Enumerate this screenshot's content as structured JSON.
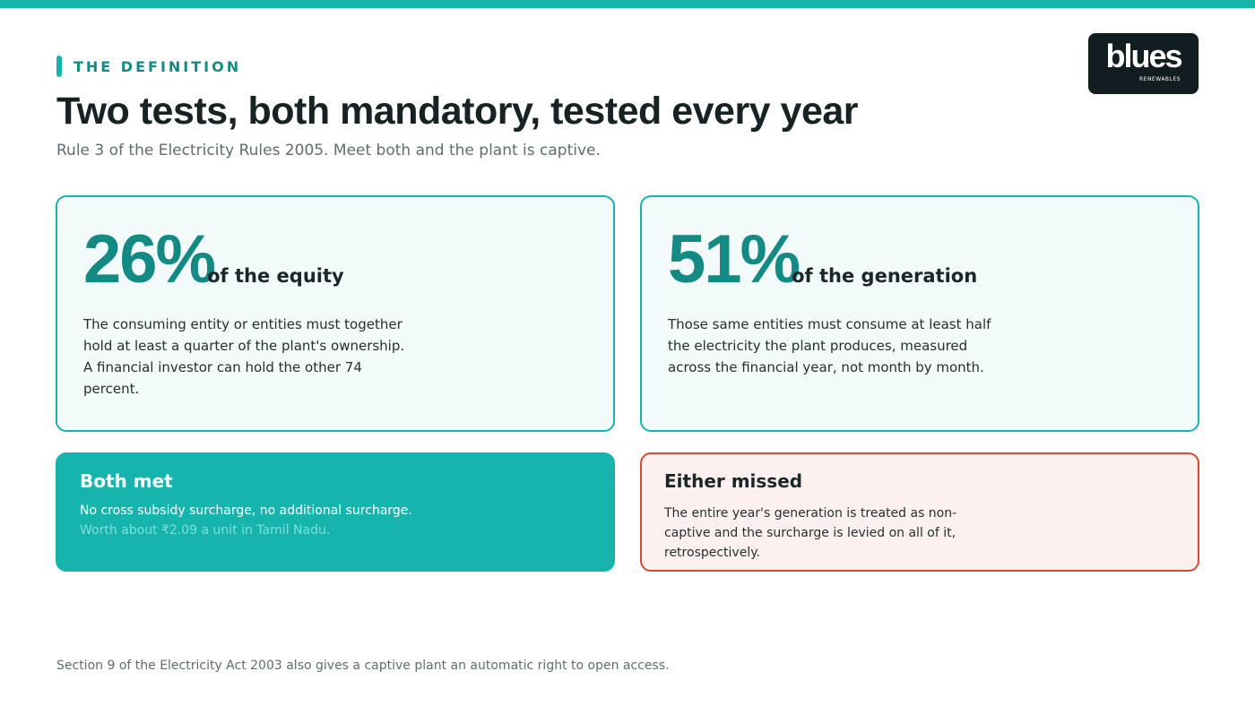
{
  "header": {
    "eyebrow": "THE DEFINITION",
    "title": "Two tests, both mandatory, tested every year",
    "subtitle": "Rule 3 of the Electricity Rules 2005. Meet both and the plant is captive."
  },
  "logo": {
    "word": "blues",
    "sub": "RENEWABLES"
  },
  "tests": [
    {
      "figure": "26%",
      "label": "of the equity",
      "body": "The consuming entity or entities must together hold at least a quarter of the plant's ownership. A financial investor can hold the other 74 percent."
    },
    {
      "figure": "51%",
      "label": "of the generation",
      "body": "Those same entities must consume at least half the electricity the plant produces, measured across the financial year, not month by month."
    }
  ],
  "outcomes": {
    "met": {
      "title": "Both met",
      "line1": "No cross subsidy surcharge, no additional surcharge.",
      "line2": "Worth about ₹2.09 a unit in Tamil Nadu."
    },
    "missed": {
      "title": "Either missed",
      "body": "The entire year's generation is treated as non-captive and the surcharge is levied on all of it, retrospectively."
    }
  },
  "footnote": "Section 9 of the Electricity Act 2003 also gives a captive plant an automatic right to open access.",
  "colors": {
    "accent": "#17b3ad",
    "accent_dark": "#138a84",
    "warning": "#d64a33",
    "logo_bg": "#121d22"
  }
}
